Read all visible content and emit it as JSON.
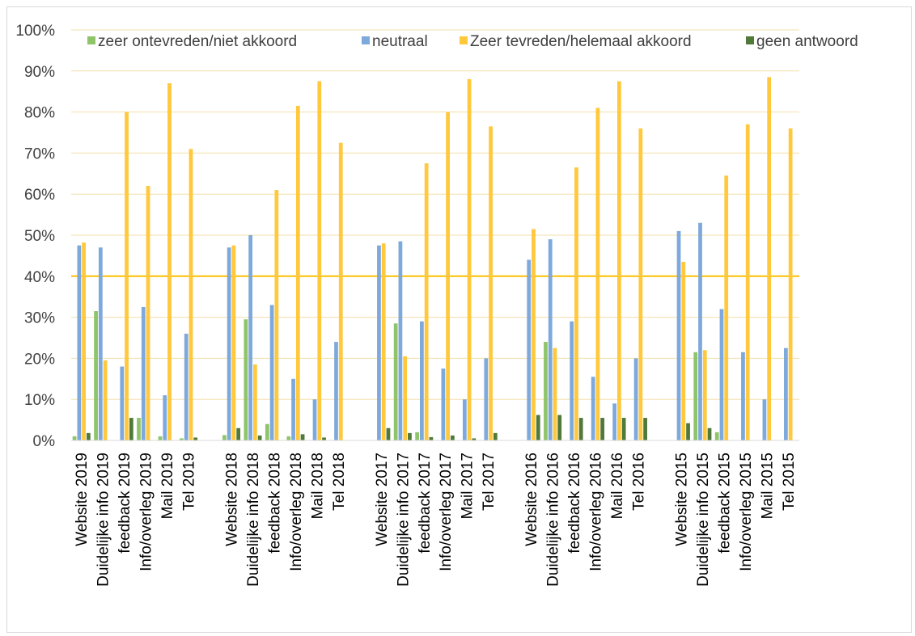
{
  "chart_data": {
    "type": "bar",
    "title": "",
    "xlabel": "",
    "ylabel": "",
    "ylim": [
      0,
      1
    ],
    "yticks": [
      "0%",
      "10%",
      "20%",
      "30%",
      "40%",
      "50%",
      "60%",
      "70%",
      "80%",
      "90%",
      "100%"
    ],
    "grid": true,
    "reference_line": 0.4,
    "legend_position": "top",
    "groups": [
      {
        "categories": [
          "Website 2019",
          "Duidelijke info 2019",
          "feedback 2019",
          "Info/overleg 2019",
          "Mail 2019",
          "Tel 2019"
        ]
      },
      {
        "categories": [
          "Website 2018",
          "Duidelijke info 2018",
          "feedback 2018",
          "Info/overleg 2018",
          "Mail 2018",
          "Tel 2018"
        ]
      },
      {
        "categories": [
          "Website 2017",
          "Duidelijke info 2017",
          "feedback 2017",
          "Info/overleg 2017",
          "Mail 2017",
          "Tel 2017"
        ]
      },
      {
        "categories": [
          "Website 2016",
          "Duidelijke info 2016",
          "feedback 2016",
          "Info/overleg 2016",
          "Mail 2016",
          "Tel 2016"
        ]
      },
      {
        "categories": [
          "Website 2015",
          "Duidelijke info 2015",
          "feedback 2015",
          "Info/overleg 2015",
          "Mail 2015",
          "Tel 2015"
        ]
      }
    ],
    "series": [
      {
        "name": "zeer ontevreden/niet akkoord",
        "color": "#8fc46a",
        "values": [
          [
            0.01,
            0.315,
            0.0,
            0.055,
            0.01,
            0.005
          ],
          [
            0.013,
            0.295,
            0.04,
            0.01,
            0.0,
            0.0
          ],
          [
            0.0,
            0.285,
            0.02,
            0.0,
            0.0,
            0.0
          ],
          [
            0.0,
            0.24,
            0.0,
            0.0,
            0.0,
            0.0
          ],
          [
            0.0,
            0.215,
            0.02,
            0.0,
            0.0,
            0.0
          ]
        ]
      },
      {
        "name": "neutraal",
        "color": "#7ea9dc",
        "values": [
          [
            0.475,
            0.47,
            0.18,
            0.325,
            0.11,
            0.26
          ],
          [
            0.47,
            0.5,
            0.33,
            0.15,
            0.1,
            0.24
          ],
          [
            0.475,
            0.485,
            0.29,
            0.175,
            0.1,
            0.2
          ],
          [
            0.44,
            0.49,
            0.29,
            0.155,
            0.09,
            0.2
          ],
          [
            0.51,
            0.53,
            0.32,
            0.215,
            0.1,
            0.225
          ]
        ]
      },
      {
        "name": "Zeer tevreden/helemaal akkoord",
        "color": "#ffc83d",
        "values": [
          [
            0.482,
            0.195,
            0.8,
            0.62,
            0.87,
            0.71
          ],
          [
            0.475,
            0.185,
            0.61,
            0.815,
            0.875,
            0.725
          ],
          [
            0.48,
            0.205,
            0.675,
            0.8,
            0.88,
            0.765
          ],
          [
            0.515,
            0.225,
            0.665,
            0.81,
            0.875,
            0.76
          ],
          [
            0.435,
            0.22,
            0.645,
            0.77,
            0.885,
            0.76
          ]
        ]
      },
      {
        "name": "geen antwoord",
        "color": "#4f7a3a",
        "values": [
          [
            0.018,
            0.0,
            0.055,
            0.0,
            0.0,
            0.007
          ],
          [
            0.03,
            0.012,
            0.0,
            0.015,
            0.007,
            0.0
          ],
          [
            0.03,
            0.018,
            0.008,
            0.012,
            0.005,
            0.018
          ],
          [
            0.062,
            0.062,
            0.055,
            0.055,
            0.055,
            0.055
          ],
          [
            0.042,
            0.03,
            0.0,
            0.0,
            0.0,
            0.0
          ]
        ]
      }
    ]
  }
}
